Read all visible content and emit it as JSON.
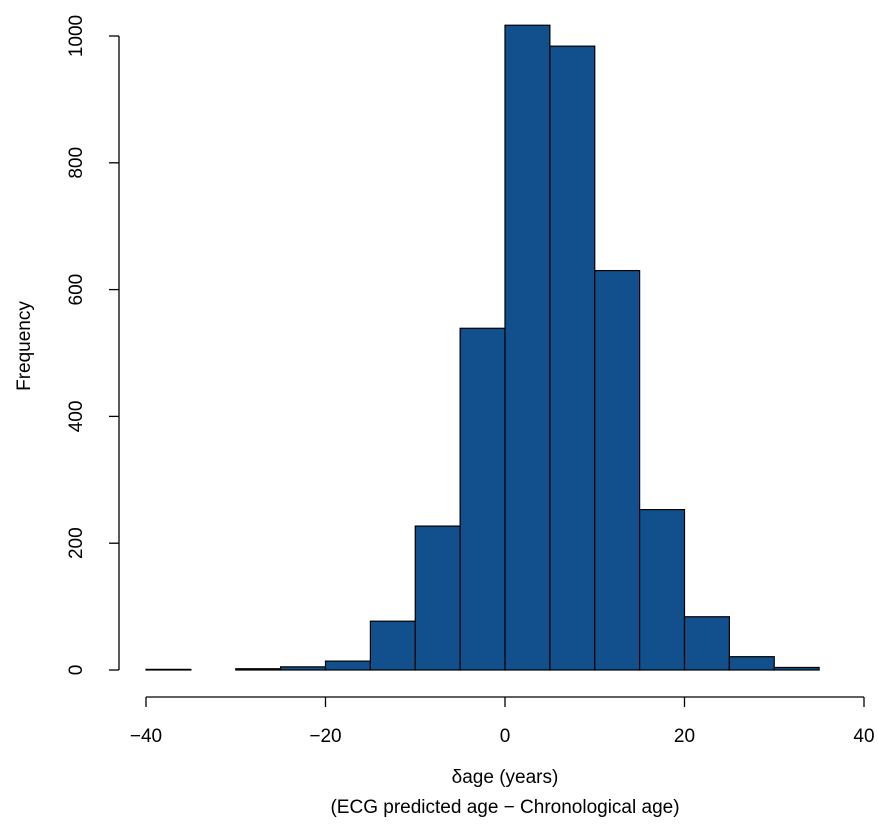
{
  "chart_data": {
    "type": "bar",
    "subtype": "histogram",
    "bin_width": 5,
    "bins": [
      {
        "x0": -40,
        "x1": -35,
        "count": 1
      },
      {
        "x0": -35,
        "x1": -30,
        "count": 0
      },
      {
        "x0": -30,
        "x1": -25,
        "count": 2
      },
      {
        "x0": -25,
        "x1": -20,
        "count": 5
      },
      {
        "x0": -20,
        "x1": -15,
        "count": 14
      },
      {
        "x0": -15,
        "x1": -10,
        "count": 77
      },
      {
        "x0": -10,
        "x1": -5,
        "count": 227
      },
      {
        "x0": -5,
        "x1": 0,
        "count": 539
      },
      {
        "x0": 0,
        "x1": 5,
        "count": 1017
      },
      {
        "x0": 5,
        "x1": 10,
        "count": 984
      },
      {
        "x0": 10,
        "x1": 15,
        "count": 630
      },
      {
        "x0": 15,
        "x1": 20,
        "count": 253
      },
      {
        "x0": 20,
        "x1": 25,
        "count": 84
      },
      {
        "x0": 25,
        "x1": 30,
        "count": 21
      },
      {
        "x0": 30,
        "x1": 35,
        "count": 4
      }
    ],
    "title": "",
    "xlabel": "δage (years)",
    "xlabel_sub": "(ECG predicted age − Chronological age)",
    "ylabel": "Frequency",
    "xlim": [
      -40,
      40
    ],
    "ylim": [
      0,
      1000
    ],
    "xticks": [
      -40,
      -20,
      0,
      20,
      40
    ],
    "xtick_labels": [
      "−40",
      "−20",
      "0",
      "20",
      "40"
    ],
    "yticks": [
      0,
      200,
      400,
      600,
      800,
      1000
    ],
    "ytick_labels": [
      "0",
      "200",
      "400",
      "600",
      "800",
      "1000"
    ],
    "bar_color": "#12508d",
    "grid": false,
    "legend": "none"
  }
}
